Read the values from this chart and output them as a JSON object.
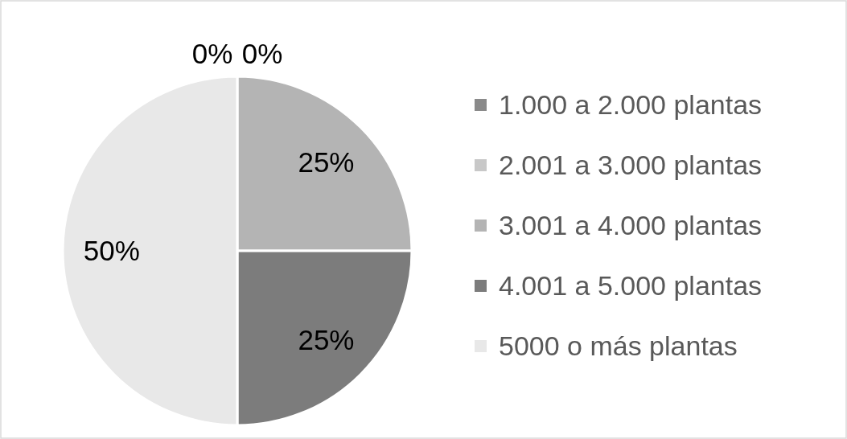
{
  "chart_data": {
    "type": "pie",
    "categories": [
      "1.000 a 2.000 plantas",
      "2.001 a 3.000 plantas",
      "3.001 a 4.000 plantas",
      "4.001 a 5.000 plantas",
      "5000 o más plantas"
    ],
    "values": [
      0,
      0,
      25,
      25,
      50
    ],
    "colors": [
      "#8a8a8a",
      "#c8c8c8",
      "#b4b4b4",
      "#7c7c7c",
      "#e8e8e8"
    ],
    "value_labels": [
      "0%",
      "0%",
      "25%",
      "25%",
      "50%"
    ],
    "legend": "right"
  }
}
